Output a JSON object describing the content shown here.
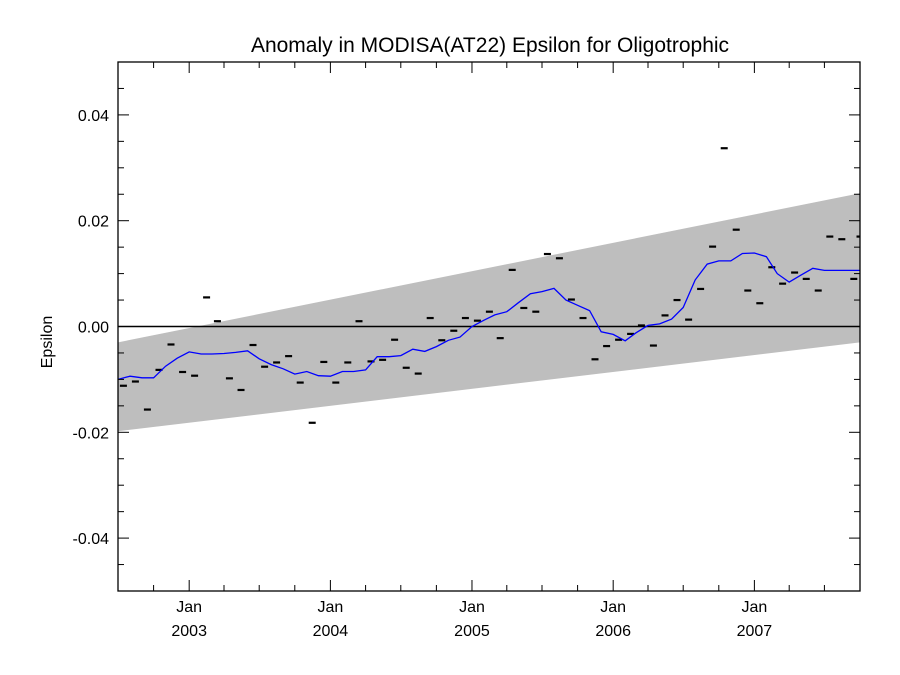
{
  "chart_data": {
    "type": "line",
    "title": "Anomaly in MODISA(AT22) Epsilon for Oligotrophic",
    "xlabel": "",
    "ylabel": "Epsilon",
    "ylim": [
      -0.05,
      0.05
    ],
    "xlim": [
      "2002-07-01",
      "2007-10-01"
    ],
    "yticks": [
      {
        "value": 0.04,
        "label": "0.04"
      },
      {
        "value": 0.02,
        "label": "0.02"
      },
      {
        "value": 0.0,
        "label": "0.00"
      },
      {
        "value": -0.02,
        "label": "-0.02"
      },
      {
        "value": -0.04,
        "label": "-0.04"
      }
    ],
    "xticks": [
      {
        "date": "2003-01-01",
        "month": "Jan",
        "year": "2003"
      },
      {
        "date": "2004-01-01",
        "month": "Jan",
        "year": "2004"
      },
      {
        "date": "2005-01-01",
        "month": "Jan",
        "year": "2005"
      },
      {
        "date": "2006-01-01",
        "month": "Jan",
        "year": "2006"
      },
      {
        "date": "2007-01-01",
        "month": "Jan",
        "year": "2007"
      }
    ],
    "grid": false,
    "reference_line": 0.0,
    "band": {
      "start": {
        "date": "2002-07-01",
        "lower": -0.0198,
        "upper": -0.003
      },
      "end": {
        "date": "2007-10-01",
        "lower": -0.003,
        "upper": 0.0252
      }
    },
    "series": [
      {
        "kind": "markers",
        "x": [
          "2002-07-15",
          "2002-08-15",
          "2002-09-15",
          "2002-10-15",
          "2002-11-15",
          "2002-12-15",
          "2003-01-15",
          "2003-02-15",
          "2003-03-15",
          "2003-04-15",
          "2003-05-15",
          "2003-06-15",
          "2003-07-15",
          "2003-08-15",
          "2003-09-15",
          "2003-10-15",
          "2003-11-15",
          "2003-12-15",
          "2004-01-15",
          "2004-02-15",
          "2004-03-15",
          "2004-04-15",
          "2004-05-15",
          "2004-06-15",
          "2004-07-15",
          "2004-08-15",
          "2004-09-15",
          "2004-10-15",
          "2004-11-15",
          "2004-12-15",
          "2005-01-15",
          "2005-02-15",
          "2005-03-15",
          "2005-04-15",
          "2005-05-15",
          "2005-06-15",
          "2005-07-15",
          "2005-08-15",
          "2005-09-15",
          "2005-10-15",
          "2005-11-15",
          "2005-12-15",
          "2006-01-15",
          "2006-02-15",
          "2006-03-15",
          "2006-04-15",
          "2006-05-15",
          "2006-06-15",
          "2006-07-15",
          "2006-08-15",
          "2006-09-15",
          "2006-10-15",
          "2006-11-15",
          "2006-12-15",
          "2007-01-15",
          "2007-02-15",
          "2007-03-15",
          "2007-04-15",
          "2007-05-15",
          "2007-06-15",
          "2007-07-15",
          "2007-08-15",
          "2007-09-15",
          "2007-10-01"
        ],
        "values": [
          -0.0112,
          -0.0104,
          -0.0157,
          -0.0082,
          -0.0034,
          -0.0086,
          -0.0093,
          0.0055,
          0.001,
          -0.0098,
          -0.012,
          -0.0035,
          -0.0076,
          -0.0068,
          -0.0056,
          -0.0106,
          -0.0182,
          -0.0067,
          -0.0106,
          -0.0068,
          0.001,
          -0.0066,
          -0.0063,
          -0.0025,
          -0.0078,
          -0.0089,
          0.0016,
          -0.0026,
          -0.0008,
          0.0016,
          0.0011,
          0.0028,
          -0.0022,
          0.0107,
          0.0035,
          0.0028,
          0.0137,
          0.0129,
          0.0051,
          0.0016,
          -0.0062,
          -0.0037,
          -0.0025,
          -0.0014,
          0.0002,
          -0.0036,
          0.0021,
          0.005,
          0.0013,
          0.0071,
          0.0151,
          0.0337,
          0.0183,
          0.0068,
          0.0044,
          0.0112,
          0.0081,
          0.0102,
          0.009,
          0.0068,
          0.017,
          0.0165,
          0.009,
          0.017
        ]
      },
      {
        "kind": "line",
        "color": "#0000ff",
        "x": [
          "2002-07-01",
          "2002-08-01",
          "2002-09-01",
          "2002-10-01",
          "2002-11-01",
          "2002-12-01",
          "2003-01-01",
          "2003-02-01",
          "2003-03-01",
          "2003-04-01",
          "2003-05-01",
          "2003-06-01",
          "2003-07-01",
          "2003-08-01",
          "2003-09-01",
          "2003-10-01",
          "2003-11-01",
          "2003-12-01",
          "2004-01-01",
          "2004-02-01",
          "2004-03-01",
          "2004-04-01",
          "2004-05-01",
          "2004-06-01",
          "2004-07-01",
          "2004-08-01",
          "2004-09-01",
          "2004-10-01",
          "2004-11-01",
          "2004-12-01",
          "2005-01-01",
          "2005-02-01",
          "2005-03-01",
          "2005-04-01",
          "2005-05-01",
          "2005-06-01",
          "2005-07-01",
          "2005-08-01",
          "2005-09-01",
          "2005-10-01",
          "2005-11-01",
          "2005-12-01",
          "2006-01-01",
          "2006-02-01",
          "2006-03-01",
          "2006-04-01",
          "2006-05-01",
          "2006-06-01",
          "2006-07-01",
          "2006-08-01",
          "2006-09-01",
          "2006-10-01",
          "2006-11-01",
          "2006-12-01",
          "2007-01-01",
          "2007-02-01",
          "2007-03-01",
          "2007-04-01",
          "2007-05-01",
          "2007-06-01",
          "2007-07-01",
          "2007-08-01",
          "2007-09-01",
          "2007-10-01"
        ],
        "values": [
          -0.01,
          -0.0094,
          -0.0097,
          -0.0097,
          -0.0075,
          -0.006,
          -0.0048,
          -0.0052,
          -0.0052,
          -0.0051,
          -0.0049,
          -0.0046,
          -0.0061,
          -0.0072,
          -0.008,
          -0.009,
          -0.0085,
          -0.0093,
          -0.0094,
          -0.0085,
          -0.0085,
          -0.0082,
          -0.0057,
          -0.0057,
          -0.0055,
          -0.0043,
          -0.0047,
          -0.0038,
          -0.0026,
          -0.002,
          0.0,
          0.0012,
          0.0022,
          0.0028,
          0.0045,
          0.0062,
          0.0066,
          0.0072,
          0.005,
          0.004,
          0.003,
          -0.001,
          -0.0015,
          -0.0027,
          -0.0012,
          0.0002,
          0.0005,
          0.0014,
          0.0036,
          0.0088,
          0.0118,
          0.0124,
          0.0124,
          0.0138,
          0.0139,
          0.0132,
          0.01,
          0.0084,
          0.0097,
          0.011,
          0.0106,
          0.0106,
          0.0106,
          0.0106
        ]
      }
    ]
  }
}
